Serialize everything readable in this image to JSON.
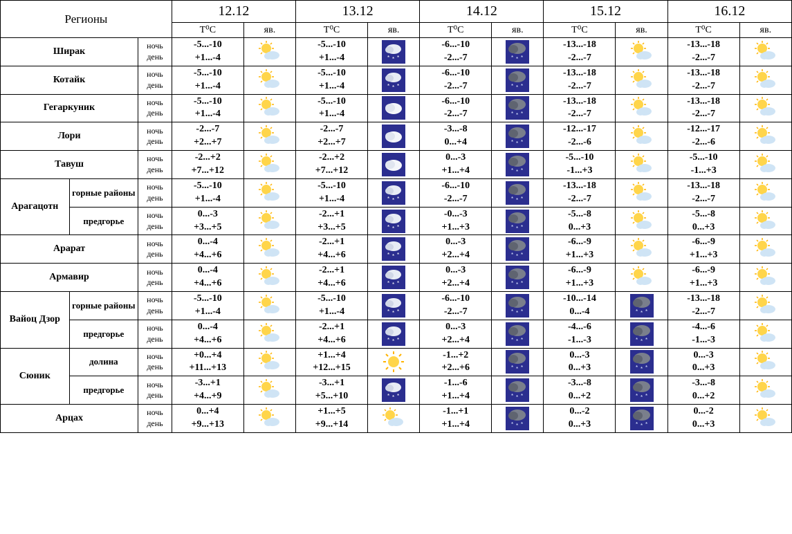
{
  "headers": {
    "regions": "Регионы",
    "temp": "T⁰C",
    "phenom": "яв.",
    "night": "ночь",
    "day": "день"
  },
  "dates": [
    "12.12",
    "13.12",
    "14.12",
    "15.12",
    "16.12"
  ],
  "icons": {
    "partly_sunny": {
      "type": "sun_cloud"
    },
    "snow_night": {
      "type": "snow_dark"
    },
    "snow_storm": {
      "type": "snow_grey"
    },
    "cloud": {
      "type": "cloud_night"
    },
    "sunny": {
      "type": "sun"
    }
  },
  "rows": [
    {
      "region": "Ширак",
      "sub": null,
      "cells": [
        {
          "n": "-5...-10",
          "d": "+1...-4",
          "i": "partly_sunny"
        },
        {
          "n": "-5...-10",
          "d": "+1...-4",
          "i": "snow_night"
        },
        {
          "n": "-6...-10",
          "d": "-2...-7",
          "i": "snow_storm"
        },
        {
          "n": "-13...-18",
          "d": "-2...-7",
          "i": "partly_sunny"
        },
        {
          "n": "-13...-18",
          "d": "-2...-7",
          "i": "partly_sunny"
        }
      ]
    },
    {
      "region": "Котайк",
      "sub": null,
      "cells": [
        {
          "n": "-5...-10",
          "d": "+1...-4",
          "i": "partly_sunny"
        },
        {
          "n": "-5...-10",
          "d": "+1...-4",
          "i": "snow_night"
        },
        {
          "n": "-6...-10",
          "d": "-2...-7",
          "i": "snow_storm"
        },
        {
          "n": "-13...-18",
          "d": "-2...-7",
          "i": "partly_sunny"
        },
        {
          "n": "-13...-18",
          "d": "-2...-7",
          "i": "partly_sunny"
        }
      ]
    },
    {
      "region": "Гегаркуник",
      "sub": null,
      "cells": [
        {
          "n": "-5...-10",
          "d": "+1...-4",
          "i": "partly_sunny"
        },
        {
          "n": "-5...-10",
          "d": "+1...-4",
          "i": "cloud"
        },
        {
          "n": "-6...-10",
          "d": "-2...-7",
          "i": "snow_storm"
        },
        {
          "n": "-13...-18",
          "d": "-2...-7",
          "i": "partly_sunny"
        },
        {
          "n": "-13...-18",
          "d": "-2...-7",
          "i": "partly_sunny"
        }
      ]
    },
    {
      "region": "Лори",
      "sub": null,
      "cells": [
        {
          "n": "-2...-7",
          "d": "+2...+7",
          "i": "partly_sunny"
        },
        {
          "n": "-2...-7",
          "d": "+2...+7",
          "i": "cloud"
        },
        {
          "n": "-3...-8",
          "d": "0...+4",
          "i": "snow_storm"
        },
        {
          "n": "-12...-17",
          "d": "-2...-6",
          "i": "partly_sunny"
        },
        {
          "n": "-12...-17",
          "d": "-2...-6",
          "i": "partly_sunny"
        }
      ]
    },
    {
      "region": "Тавуш",
      "sub": null,
      "cells": [
        {
          "n": "-2...+2",
          "d": "+7...+12",
          "i": "partly_sunny"
        },
        {
          "n": "-2...+2",
          "d": "+7...+12",
          "i": "cloud"
        },
        {
          "n": "0...-3",
          "d": "+1...+4",
          "i": "snow_storm"
        },
        {
          "n": "-5...-10",
          "d": "-1...+3",
          "i": "partly_sunny"
        },
        {
          "n": "-5...-10",
          "d": "-1...+3",
          "i": "partly_sunny"
        }
      ]
    },
    {
      "region": "Арагацотн",
      "sub": "горные районы",
      "cells": [
        {
          "n": "-5...-10",
          "d": "+1...-4",
          "i": "partly_sunny"
        },
        {
          "n": "-5...-10",
          "d": "+1...-4",
          "i": "snow_night"
        },
        {
          "n": "-6...-10",
          "d": "-2...-7",
          "i": "snow_storm"
        },
        {
          "n": "-13...-18",
          "d": "-2...-7",
          "i": "partly_sunny"
        },
        {
          "n": "-13...-18",
          "d": "-2...-7",
          "i": "partly_sunny"
        }
      ]
    },
    {
      "region": "Арагацотн",
      "sub": "предгорье",
      "cells": [
        {
          "n": "0...-3",
          "d": "+3...+5",
          "i": "partly_sunny"
        },
        {
          "n": "-2...+1",
          "d": "+3...+5",
          "i": "snow_night"
        },
        {
          "n": "-0...-3",
          "d": "+1...+3",
          "i": "snow_storm"
        },
        {
          "n": "-5...-8",
          "d": "0...+3",
          "i": "partly_sunny"
        },
        {
          "n": "-5...-8",
          "d": "0...+3",
          "i": "partly_sunny"
        }
      ]
    },
    {
      "region": "Арарат",
      "sub": null,
      "cells": [
        {
          "n": "0...-4",
          "d": "+4...+6",
          "i": "partly_sunny"
        },
        {
          "n": "-2...+1",
          "d": "+4...+6",
          "i": "snow_night"
        },
        {
          "n": "0...-3",
          "d": "+2...+4",
          "i": "snow_storm"
        },
        {
          "n": "-6...-9",
          "d": "+1...+3",
          "i": "partly_sunny"
        },
        {
          "n": "-6...-9",
          "d": "+1...+3",
          "i": "partly_sunny"
        }
      ]
    },
    {
      "region": "Армавир",
      "sub": null,
      "cells": [
        {
          "n": "0...-4",
          "d": "+4...+6",
          "i": "partly_sunny"
        },
        {
          "n": "-2...+1",
          "d": "+4...+6",
          "i": "snow_night"
        },
        {
          "n": "0...-3",
          "d": "+2...+4",
          "i": "snow_storm"
        },
        {
          "n": "-6...-9",
          "d": "+1...+3",
          "i": "partly_sunny"
        },
        {
          "n": "-6...-9",
          "d": "+1...+3",
          "i": "partly_sunny"
        }
      ]
    },
    {
      "region": "Вайоц Дзор",
      "sub": "горные районы",
      "cells": [
        {
          "n": "-5...-10",
          "d": "+1...-4",
          "i": "partly_sunny"
        },
        {
          "n": "-5...-10",
          "d": "+1...-4",
          "i": "snow_night"
        },
        {
          "n": "-6...-10",
          "d": "-2...-7",
          "i": "snow_storm"
        },
        {
          "n": "-10...-14",
          "d": "0...-4",
          "i": "snow_storm"
        },
        {
          "n": "-13...-18",
          "d": "-2...-7",
          "i": "partly_sunny"
        }
      ]
    },
    {
      "region": "Вайоц Дзор",
      "sub": "предгорье",
      "cells": [
        {
          "n": "0...-4",
          "d": "+4...+6",
          "i": "partly_sunny"
        },
        {
          "n": "-2...+1",
          "d": "+4...+6",
          "i": "snow_night"
        },
        {
          "n": "0...-3",
          "d": "+2...+4",
          "i": "snow_storm"
        },
        {
          "n": "-4...-6",
          "d": "-1...-3",
          "i": "snow_storm"
        },
        {
          "n": "-4...-6",
          "d": "-1...-3",
          "i": "partly_sunny"
        }
      ]
    },
    {
      "region": "Сюник",
      "sub": "долина",
      "cells": [
        {
          "n": "+0...+4",
          "d": "+11...+13",
          "i": "partly_sunny"
        },
        {
          "n": "+1...+4",
          "d": "+12...+15",
          "i": "sunny"
        },
        {
          "n": "-1...+2",
          "d": "+2...+6",
          "i": "snow_storm"
        },
        {
          "n": "0...-3",
          "d": "0...+3",
          "i": "snow_storm"
        },
        {
          "n": "0...-3",
          "d": "0...+3",
          "i": "partly_sunny"
        }
      ]
    },
    {
      "region": "Сюник",
      "sub": "предгорье",
      "cells": [
        {
          "n": "-3...+1",
          "d": "+4...+9",
          "i": "partly_sunny"
        },
        {
          "n": "-3...+1",
          "d": "+5...+10",
          "i": "snow_night"
        },
        {
          "n": "-1...-6",
          "d": "+1...+4",
          "i": "snow_storm"
        },
        {
          "n": "-3...-8",
          "d": "0...+2",
          "i": "snow_storm"
        },
        {
          "n": "-3...-8",
          "d": "0...+2",
          "i": "partly_sunny"
        }
      ]
    },
    {
      "region": "Арцах",
      "sub": null,
      "cells": [
        {
          "n": "0...+4",
          "d": "+9...+13",
          "i": "partly_sunny"
        },
        {
          "n": "+1...+5",
          "d": "+9...+14",
          "i": "partly_sunny"
        },
        {
          "n": "-1...+1",
          "d": "+1...+4",
          "i": "snow_storm"
        },
        {
          "n": "0...-2",
          "d": "0...+3",
          "i": "snow_storm"
        },
        {
          "n": "0...-2",
          "d": "0...+3",
          "i": "partly_sunny"
        }
      ]
    }
  ]
}
